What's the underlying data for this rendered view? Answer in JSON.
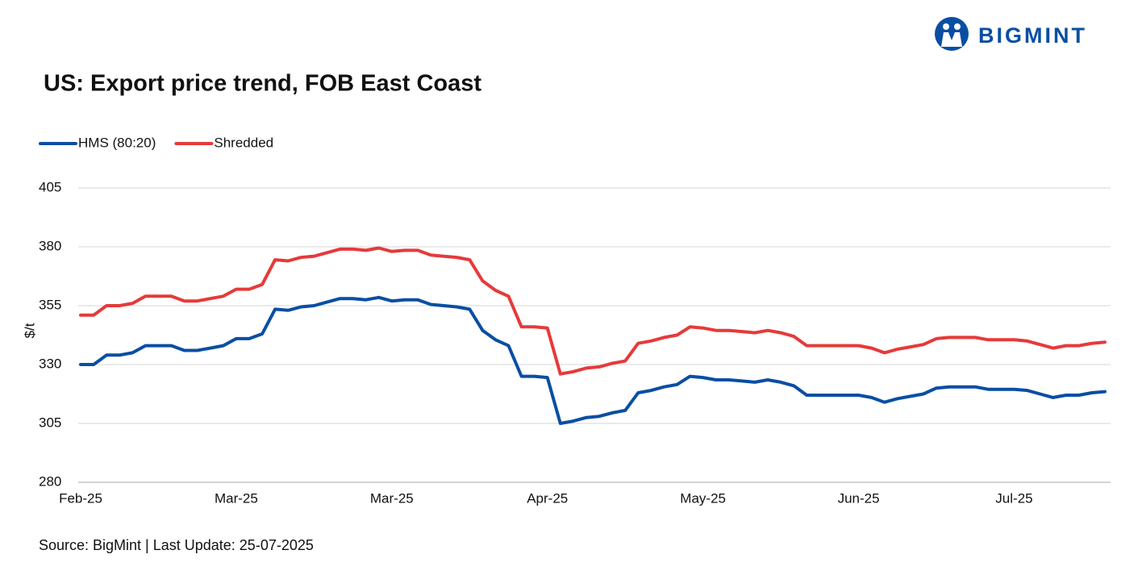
{
  "logo": "BIGMINT",
  "chart_data": {
    "type": "line",
    "title": "US: Export price trend, FOB East Coast",
    "y_label": "$/t",
    "source": "Source: BigMint | Last Update: 25-07-2025",
    "categories": [
      "Feb-25",
      null,
      null,
      null,
      null,
      null,
      null,
      null,
      null,
      null,
      null,
      null,
      "Mar-25",
      null,
      null,
      null,
      null,
      null,
      null,
      null,
      null,
      null,
      null,
      null,
      "Mar-25",
      null,
      null,
      null,
      null,
      null,
      null,
      null,
      null,
      null,
      null,
      null,
      "Apr-25",
      null,
      null,
      null,
      null,
      null,
      null,
      null,
      null,
      null,
      null,
      null,
      "May-25",
      null,
      null,
      null,
      null,
      null,
      null,
      null,
      null,
      null,
      null,
      null,
      "Jun-25",
      null,
      null,
      null,
      null,
      null,
      null,
      null,
      null,
      null,
      null,
      null,
      "Jul-25",
      null,
      null,
      null,
      null,
      null,
      null,
      null
    ],
    "series": [
      {
        "name": "HMS (80:20)",
        "color": "#0a4ea3",
        "values": [
          330,
          330,
          334,
          334,
          335,
          338,
          338,
          338,
          336,
          336,
          337,
          338,
          341,
          341,
          343,
          353.5,
          353,
          354.5,
          355,
          356.5,
          358,
          358,
          357.5,
          358.5,
          357,
          357.5,
          357.5,
          355.5,
          355,
          354.5,
          353.5,
          344.5,
          340.5,
          338,
          325,
          325,
          324.5,
          305,
          306,
          307.5,
          308,
          309.5,
          310.5,
          318,
          319,
          320.5,
          321.5,
          325,
          324.5,
          323.5,
          323.5,
          323,
          322.5,
          323.5,
          322.5,
          321,
          317,
          317,
          317,
          317,
          317,
          316,
          314,
          315.5,
          316.5,
          317.5,
          320,
          320.5,
          320.5,
          320.5,
          319.5,
          319.5,
          319.5,
          319,
          317.5,
          316,
          317,
          317,
          318,
          318.5
        ]
      },
      {
        "name": "Shredded",
        "color": "#e63a3a",
        "values": [
          351,
          351,
          355,
          355,
          356,
          359,
          359,
          359,
          357,
          357,
          358,
          359,
          362,
          362,
          364,
          374.5,
          374,
          375.5,
          376,
          377.5,
          379,
          379,
          378.5,
          379.5,
          378,
          378.5,
          378.5,
          376.5,
          376,
          375.5,
          374.5,
          365.5,
          361.5,
          359,
          346,
          346,
          345.5,
          326,
          327,
          328.5,
          329,
          330.5,
          331.5,
          339,
          340,
          341.5,
          342.5,
          346,
          345.5,
          344.5,
          344.5,
          344,
          343.5,
          344.5,
          343.5,
          342,
          338,
          338,
          338,
          338,
          338,
          337,
          335,
          336.5,
          337.5,
          338.5,
          341,
          341.5,
          341.5,
          341.5,
          340.5,
          340.5,
          340.5,
          340,
          338.5,
          337,
          338,
          338,
          339,
          339.5
        ]
      }
    ],
    "ylim": [
      280,
      405
    ],
    "yticks": [
      280,
      305,
      330,
      355,
      380,
      405
    ],
    "grid": true,
    "legend": "top-left"
  }
}
